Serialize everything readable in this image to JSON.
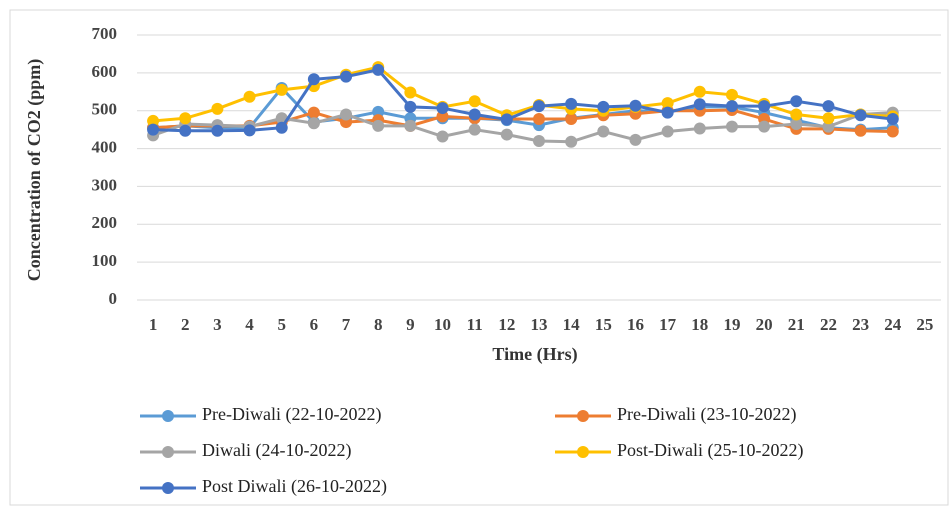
{
  "chart_data": {
    "type": "line",
    "y_label": "Concentration of CO2 (ppm)",
    "x_label": "Time (Hrs)",
    "categories": [
      1,
      2,
      3,
      4,
      5,
      6,
      7,
      8,
      9,
      10,
      11,
      12,
      13,
      14,
      15,
      16,
      17,
      18,
      19,
      20,
      21,
      22,
      23,
      24,
      25
    ],
    "ylim": [
      0,
      700
    ],
    "yticks": [
      0,
      100,
      200,
      300,
      400,
      500,
      600,
      700
    ],
    "grid": true,
    "legend": "bottom",
    "series": [
      {
        "name": "Pre-Diwali (22-10-2022)",
        "color": "#5b9bd5",
        "values": [
          455,
          460,
          455,
          455,
          560,
          470,
          480,
          497,
          480,
          480,
          480,
          475,
          462,
          480,
          490,
          500,
          498,
          510,
          510,
          495,
          475,
          455,
          450,
          455,
          null
        ]
      },
      {
        "name": "Pre-Diwali (23-10-2022)",
        "color": "#ed7d31",
        "values": [
          455,
          460,
          460,
          460,
          470,
          495,
          470,
          475,
          460,
          485,
          480,
          478,
          478,
          478,
          488,
          492,
          500,
          500,
          502,
          478,
          452,
          452,
          447,
          445,
          null
        ]
      },
      {
        "name": "Diwali (24-10-2022)",
        "color": "#a5a5a5",
        "values": [
          435,
          465,
          462,
          458,
          480,
          467,
          490,
          460,
          460,
          432,
          450,
          437,
          420,
          418,
          445,
          423,
          445,
          453,
          458,
          458,
          465,
          458,
          490,
          495,
          null
        ]
      },
      {
        "name": "Post-Diwali (25-10-2022)",
        "color": "#ffc000",
        "values": [
          473,
          480,
          505,
          537,
          555,
          565,
          595,
          615,
          548,
          510,
          525,
          488,
          515,
          505,
          500,
          510,
          520,
          550,
          542,
          518,
          490,
          480,
          490,
          485,
          null
        ]
      },
      {
        "name": "Post Diwali (26-10-2022)",
        "color": "#4472c4",
        "values": [
          450,
          447,
          447,
          448,
          455,
          583,
          590,
          608,
          510,
          507,
          490,
          477,
          512,
          518,
          510,
          513,
          495,
          517,
          512,
          512,
          525,
          512,
          488,
          478,
          null
        ]
      }
    ]
  }
}
